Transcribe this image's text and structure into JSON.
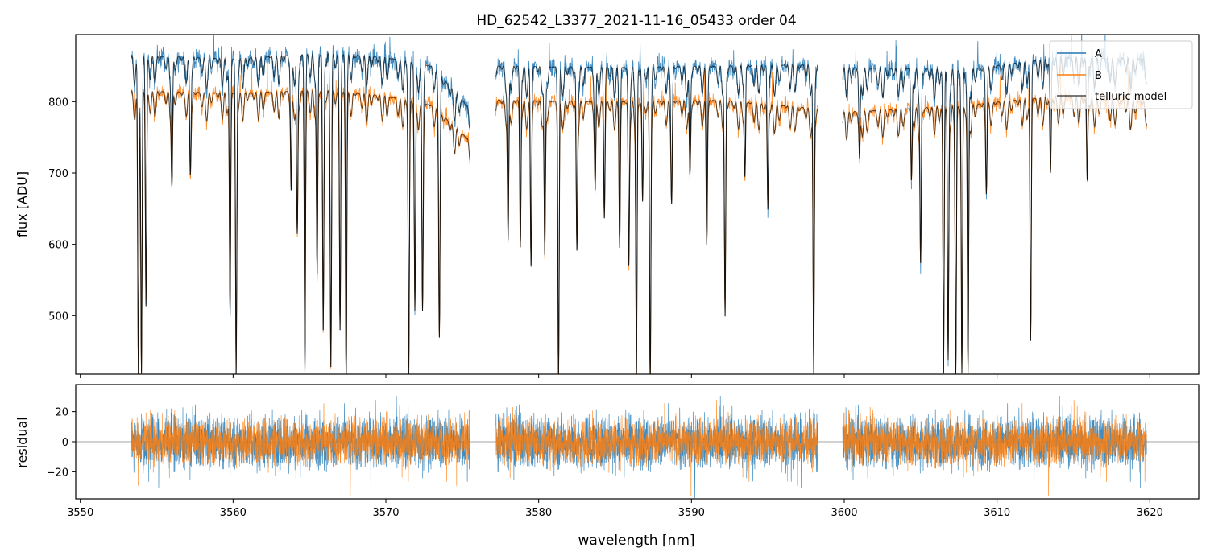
{
  "chart_data": [
    {
      "type": "line",
      "title": "HD_62542_L3377_2021-11-16_05433  order 04",
      "xlabel": "",
      "ylabel": "flux [ADU]",
      "xlim": [
        3549.7,
        3623.2
      ],
      "ylim": [
        418,
        894
      ],
      "yticks": [
        500,
        600,
        700,
        800
      ],
      "xticks": [
        3550,
        3560,
        3570,
        3580,
        3590,
        3600,
        3610,
        3620
      ],
      "grid": false,
      "legend": {
        "position": "upper-right",
        "entries": [
          "A",
          "B",
          "telluric model"
        ]
      },
      "segments": [
        [
          3553.3,
          3575.5
        ],
        [
          3577.2,
          3598.3
        ],
        [
          3599.9,
          3619.8
        ]
      ],
      "series": [
        {
          "name": "A",
          "color": "#1f77b4",
          "continuum": [
            {
              "x": 3553.3,
              "y": 865
            },
            {
              "x": 3560,
              "y": 860
            },
            {
              "x": 3566,
              "y": 868
            },
            {
              "x": 3570,
              "y": 862
            },
            {
              "x": 3573,
              "y": 850
            },
            {
              "x": 3575.5,
              "y": 790
            },
            {
              "x": 3577.2,
              "y": 850
            },
            {
              "x": 3585,
              "y": 848
            },
            {
              "x": 3592,
              "y": 850
            },
            {
              "x": 3598.3,
              "y": 852
            },
            {
              "x": 3599.9,
              "y": 848
            },
            {
              "x": 3608,
              "y": 845
            },
            {
              "x": 3614,
              "y": 862
            },
            {
              "x": 3619.8,
              "y": 860
            }
          ]
        },
        {
          "name": "B",
          "color": "#ff7f0e",
          "continuum": [
            {
              "x": 3553.3,
              "y": 815
            },
            {
              "x": 3560,
              "y": 812
            },
            {
              "x": 3566,
              "y": 816
            },
            {
              "x": 3570,
              "y": 808
            },
            {
              "x": 3573,
              "y": 795
            },
            {
              "x": 3575.5,
              "y": 745
            },
            {
              "x": 3577.2,
              "y": 802
            },
            {
              "x": 3585,
              "y": 800
            },
            {
              "x": 3592,
              "y": 802
            },
            {
              "x": 3598.3,
              "y": 790
            },
            {
              "x": 3599.9,
              "y": 785
            },
            {
              "x": 3608,
              "y": 795
            },
            {
              "x": 3614,
              "y": 808
            },
            {
              "x": 3619.8,
              "y": 800
            }
          ]
        },
        {
          "name": "telluric model",
          "color": "#000000"
        }
      ],
      "absorption_lines": [
        {
          "x": 3553.8,
          "y": 420
        },
        {
          "x": 3554.0,
          "y": 420
        },
        {
          "x": 3554.3,
          "y": 515
        },
        {
          "x": 3556.0,
          "y": 695
        },
        {
          "x": 3557.2,
          "y": 720
        },
        {
          "x": 3559.8,
          "y": 500
        },
        {
          "x": 3560.2,
          "y": 420
        },
        {
          "x": 3563.8,
          "y": 680
        },
        {
          "x": 3564.2,
          "y": 615
        },
        {
          "x": 3564.7,
          "y": 420
        },
        {
          "x": 3565.5,
          "y": 560
        },
        {
          "x": 3565.9,
          "y": 480
        },
        {
          "x": 3566.4,
          "y": 450
        },
        {
          "x": 3567.0,
          "y": 480
        },
        {
          "x": 3567.4,
          "y": 420
        },
        {
          "x": 3571.5,
          "y": 420
        },
        {
          "x": 3571.9,
          "y": 510
        },
        {
          "x": 3572.4,
          "y": 520
        },
        {
          "x": 3573.5,
          "y": 490
        },
        {
          "x": 3578.0,
          "y": 610
        },
        {
          "x": 3578.8,
          "y": 600
        },
        {
          "x": 3579.5,
          "y": 580
        },
        {
          "x": 3580.4,
          "y": 585
        },
        {
          "x": 3581.3,
          "y": 420
        },
        {
          "x": 3582.5,
          "y": 600
        },
        {
          "x": 3583.7,
          "y": 690
        },
        {
          "x": 3584.3,
          "y": 640
        },
        {
          "x": 3585.3,
          "y": 610
        },
        {
          "x": 3585.9,
          "y": 580
        },
        {
          "x": 3586.4,
          "y": 420
        },
        {
          "x": 3586.8,
          "y": 660
        },
        {
          "x": 3587.3,
          "y": 420
        },
        {
          "x": 3588.7,
          "y": 680
        },
        {
          "x": 3589.9,
          "y": 700
        },
        {
          "x": 3591.0,
          "y": 620
        },
        {
          "x": 3592.2,
          "y": 500
        },
        {
          "x": 3593.5,
          "y": 700
        },
        {
          "x": 3595.0,
          "y": 650
        },
        {
          "x": 3598.0,
          "y": 420
        },
        {
          "x": 3601.0,
          "y": 720
        },
        {
          "x": 3604.4,
          "y": 690
        },
        {
          "x": 3605.0,
          "y": 580
        },
        {
          "x": 3606.5,
          "y": 420
        },
        {
          "x": 3606.8,
          "y": 440
        },
        {
          "x": 3607.3,
          "y": 420
        },
        {
          "x": 3607.7,
          "y": 420
        },
        {
          "x": 3608.1,
          "y": 420
        },
        {
          "x": 3609.3,
          "y": 700
        },
        {
          "x": 3612.2,
          "y": 465
        },
        {
          "x": 3613.5,
          "y": 700
        },
        {
          "x": 3615.9,
          "y": 690
        }
      ]
    },
    {
      "type": "line",
      "title": "",
      "xlabel": "wavelength [nm]",
      "ylabel": "residual",
      "xlim": [
        3549.7,
        3623.2
      ],
      "ylim": [
        -38,
        38
      ],
      "yticks": [
        -20,
        0,
        20
      ],
      "xticks": [
        3550,
        3560,
        3570,
        3580,
        3590,
        3600,
        3610,
        3620
      ],
      "grid": false,
      "reference_line": 0,
      "noise_amplitude": 18,
      "series": [
        {
          "name": "A",
          "color": "#1f77b4"
        },
        {
          "name": "B",
          "color": "#ff7f0e"
        }
      ]
    }
  ]
}
